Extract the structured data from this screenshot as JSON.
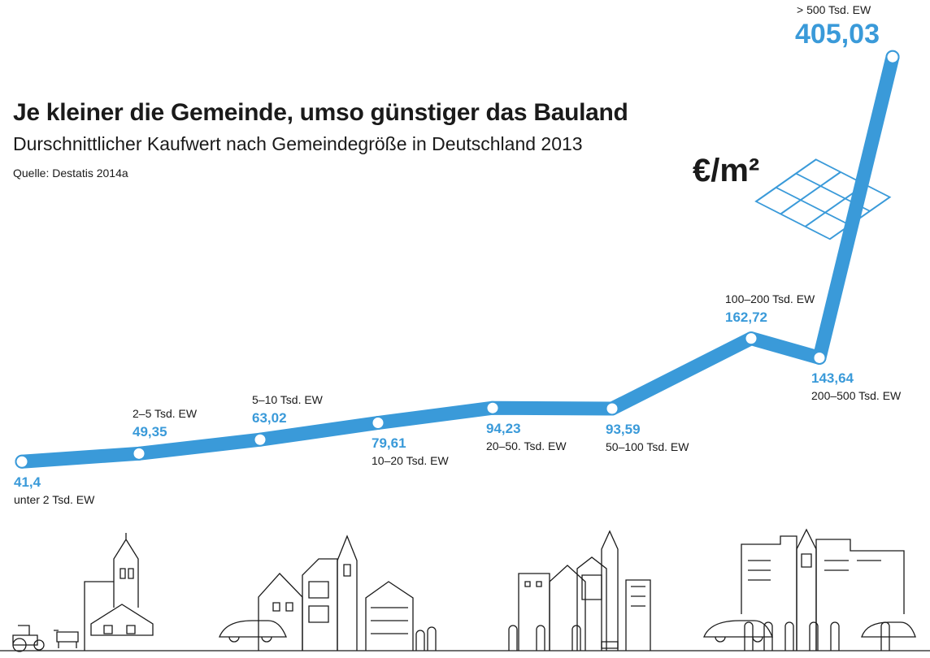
{
  "colors": {
    "line": "#3a9ad9",
    "value_text": "#3a9ad9",
    "text": "#1a1a1a",
    "illustration": "#1a1a1a"
  },
  "unit_label": "€/m²",
  "chart_data": {
    "type": "line",
    "title": "Je kleiner die Gemeinde, umso günstiger das Bauland",
    "subtitle": "Durschnittlicher Kaufwert nach Gemeindegröße in Deutschland 2013",
    "source": "Quelle: Destatis 2014a",
    "xlabel": "",
    "ylabel": "",
    "categories": [
      "unter 2 Tsd. EW",
      "2–5 Tsd. EW",
      "5–10 Tsd. EW",
      "10–20 Tsd. EW",
      "20–50. Tsd. EW",
      "50–100 Tsd. EW",
      "100–200 Tsd.  EW",
      "200–500 Tsd. EW",
      "> 500 Tsd. EW"
    ],
    "value_labels": [
      "41,4",
      "49,35",
      "63,02",
      "79,61",
      "94,23",
      "93,59",
      "162,72",
      "143,64",
      "405,03"
    ],
    "values": [
      41.4,
      49.35,
      63.02,
      79.61,
      94.23,
      93.59,
      162.72,
      143.64,
      405.03
    ],
    "grid": false,
    "legend": "none"
  }
}
